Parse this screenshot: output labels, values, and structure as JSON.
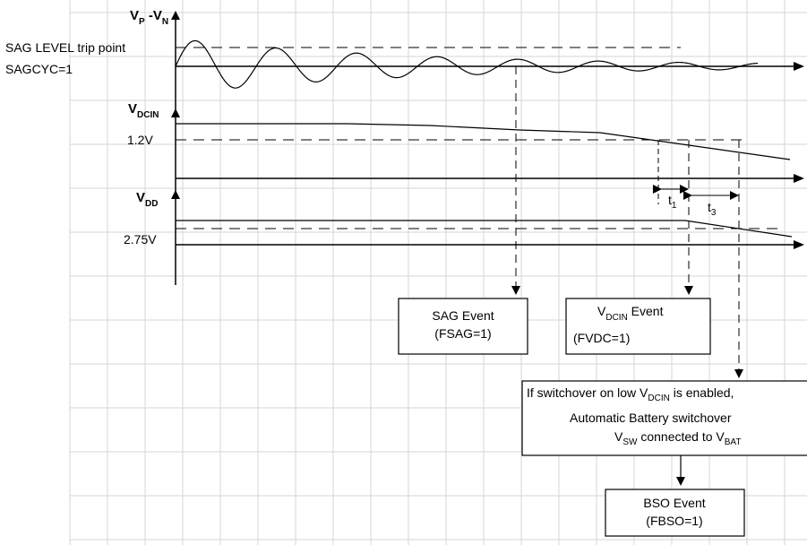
{
  "signals": {
    "vp_vn": {
      "main": "V",
      "sub1": "P",
      "mid": " -V",
      "sub2": "N"
    },
    "vdcin": {
      "main": "V",
      "sub": "DCIN"
    },
    "vdd": {
      "main": "V",
      "sub": "DD"
    }
  },
  "levels": {
    "sag_trip": "SAG LEVEL trip point",
    "sagcyc": "SAGCYC=1",
    "vdcin_threshold": "1.2V",
    "vdd_threshold": "2.75V"
  },
  "intervals": {
    "t1": {
      "main": "t",
      "sub": "1"
    },
    "t3": {
      "main": "t",
      "sub": "3"
    }
  },
  "events": {
    "sag": {
      "line1": "SAG Event",
      "line2": "(FSAG=1)"
    },
    "vdcin": {
      "line1_main": "V",
      "line1_sub": "DCIN",
      "line1_rest": " Event",
      "line2": "(FVDC=1)"
    },
    "switchover": {
      "line1_pre": "If switchover on low V",
      "line1_sub": "DCIN",
      "line1_post": " is enabled,",
      "line2": "Automatic Battery switchover",
      "line3_a": "V",
      "line3_sub1": "SW",
      "line3_b": " connected to V",
      "line3_sub2": "BAT"
    },
    "bso": {
      "line1": "BSO Event",
      "line2": "(FBSO=1)"
    }
  },
  "colors": {
    "grid": "#d6d6d6",
    "line": "#000000"
  }
}
